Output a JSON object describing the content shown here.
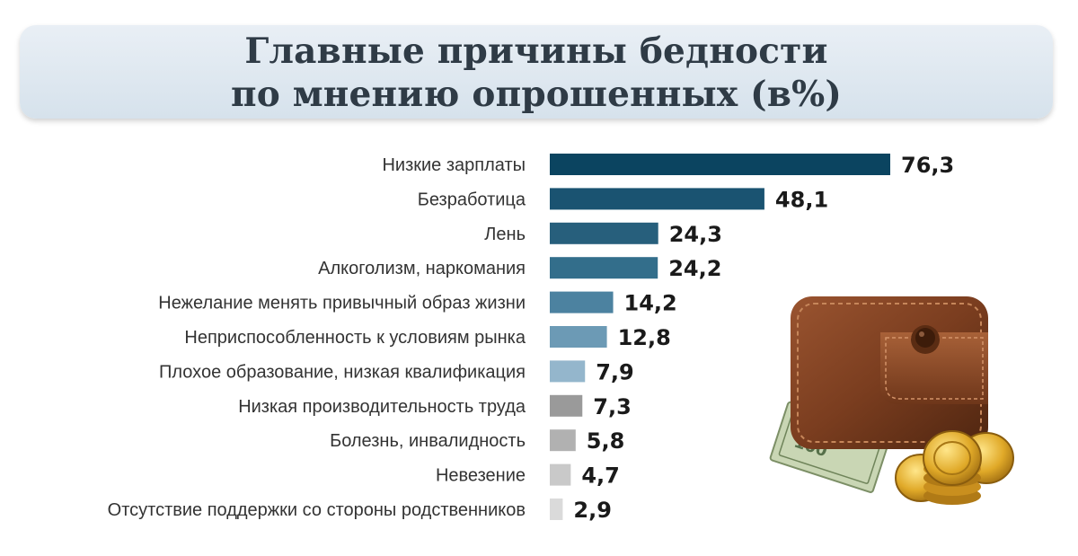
{
  "title": {
    "line1": "Главные причины бедности",
    "line2": "по мнению опрошенных (в%)"
  },
  "chart_data": {
    "type": "bar",
    "orientation": "horizontal",
    "title": "Главные причины бедности по мнению опрошенных (в%)",
    "categories": [
      "Низкие зарплаты",
      "Безработица",
      "Лень",
      "Алкоголизм, наркомания",
      "Нежелание менять привычный образ жизни",
      "Неприспособленность к условиям рынка",
      "Плохое образование, низкая квалификация",
      "Низкая производительность труда",
      "Болезнь, инвалидность",
      "Невезение",
      "Отсутствие поддержки со стороны родственников"
    ],
    "values": [
      76.3,
      48.1,
      24.3,
      24.2,
      14.2,
      12.8,
      7.9,
      7.3,
      5.8,
      4.7,
      2.9
    ],
    "value_labels": [
      "76,3",
      "48,1",
      "24,3",
      "24,2",
      "14,2",
      "12,8",
      "7,9",
      "7,3",
      "5,8",
      "4,7",
      "2,9"
    ],
    "xlim": [
      0,
      80
    ],
    "grid": false,
    "legend": "none",
    "colors": [
      "#0b4460",
      "#1a5371",
      "#275f7c",
      "#336e8b",
      "#4c82a0",
      "#6c9ab5",
      "#94b6cc",
      "#9a9a9a",
      "#b1b1b1",
      "#c9c9c9",
      "#dadada"
    ]
  },
  "illustration": {
    "icon": "wallet-with-money-and-coins-icon"
  }
}
